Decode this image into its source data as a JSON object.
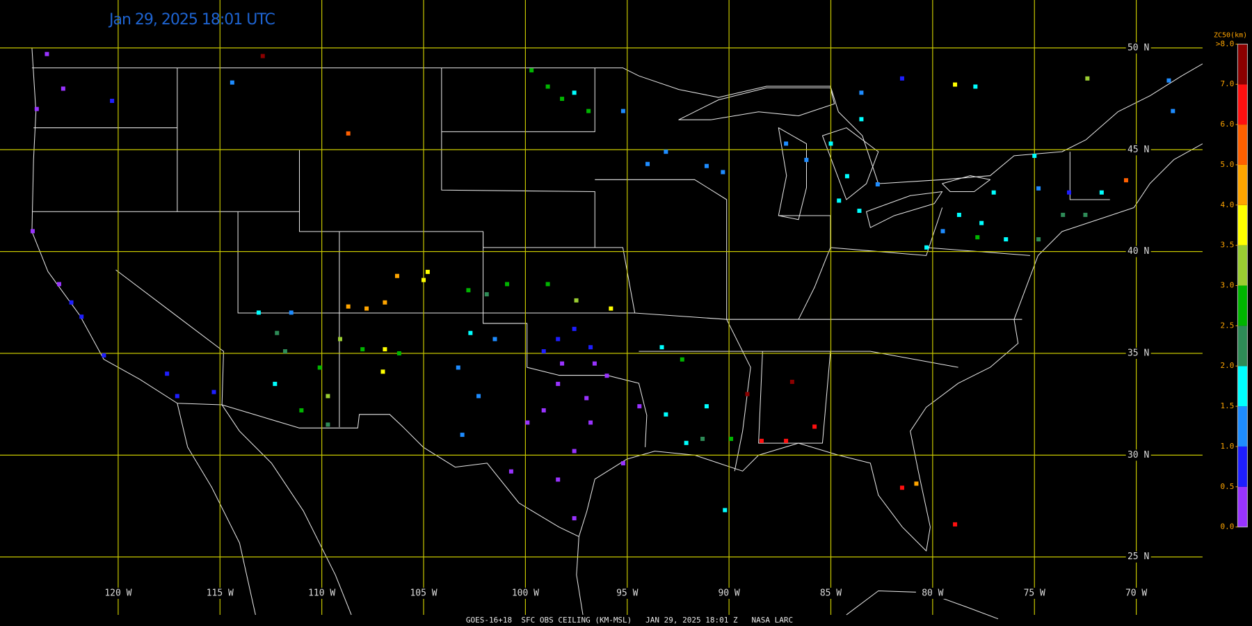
{
  "header": {
    "title": "Jan 29, 2025 18:01 UTC"
  },
  "map": {
    "grid_color": "#c8c800",
    "lat_ticks": [
      {
        "value": 50,
        "label": "50 N"
      },
      {
        "value": 45,
        "label": "45 N"
      },
      {
        "value": 40,
        "label": "40 N"
      },
      {
        "value": 35,
        "label": "35 N"
      },
      {
        "value": 30,
        "label": "30 N"
      },
      {
        "value": 25,
        "label": "25 N"
      }
    ],
    "lon_ticks": [
      {
        "value": -120,
        "label": "120 W"
      },
      {
        "value": -115,
        "label": "115 W"
      },
      {
        "value": -110,
        "label": "110 W"
      },
      {
        "value": -105,
        "label": "105 W"
      },
      {
        "value": -100,
        "label": "100 W"
      },
      {
        "value": -95,
        "label": "95 W"
      },
      {
        "value": -90,
        "label": "90 W"
      },
      {
        "value": -85,
        "label": "85 W"
      },
      {
        "value": -80,
        "label": "80 W"
      },
      {
        "value": -75,
        "label": "75 W"
      },
      {
        "value": -70,
        "label": "70 W"
      }
    ],
    "stations": [
      {
        "lon": -108.7,
        "lat": 45.8,
        "value": 5.8
      },
      {
        "lon": -112.9,
        "lat": 49.6,
        "value": 7.5
      },
      {
        "lon": -120.3,
        "lat": 47.4,
        "value": 0.8
      },
      {
        "lon": -114.4,
        "lat": 48.3,
        "value": 1.2
      },
      {
        "lon": -123.5,
        "lat": 49.7,
        "value": 0.3
      },
      {
        "lon": -124.0,
        "lat": 47.0,
        "value": 0.3
      },
      {
        "lon": -122.7,
        "lat": 48.0,
        "value": 0.3
      },
      {
        "lon": -124.2,
        "lat": 41.0,
        "value": 0.3
      },
      {
        "lon": -122.9,
        "lat": 38.4,
        "value": 0.3
      },
      {
        "lon": -122.3,
        "lat": 37.5,
        "value": 0.7
      },
      {
        "lon": -121.8,
        "lat": 36.8,
        "value": 0.7
      },
      {
        "lon": -120.7,
        "lat": 34.9,
        "value": 0.7
      },
      {
        "lon": -117.6,
        "lat": 34.0,
        "value": 0.8
      },
      {
        "lon": -115.3,
        "lat": 33.1,
        "value": 0.7
      },
      {
        "lon": -117.1,
        "lat": 32.9,
        "value": 0.8
      },
      {
        "lon": -112.3,
        "lat": 33.5,
        "value": 1.7
      },
      {
        "lon": -111.8,
        "lat": 35.1,
        "value": 2.3
      },
      {
        "lon": -112.2,
        "lat": 36.0,
        "value": 2.2
      },
      {
        "lon": -111.0,
        "lat": 32.2,
        "value": 2.8
      },
      {
        "lon": -109.7,
        "lat": 31.5,
        "value": 2.3
      },
      {
        "lon": -113.1,
        "lat": 37.0,
        "value": 1.7
      },
      {
        "lon": -111.5,
        "lat": 37.0,
        "value": 1.2
      },
      {
        "lon": -104.8,
        "lat": 39.0,
        "value": 3.7
      },
      {
        "lon": -105.0,
        "lat": 38.6,
        "value": 3.8
      },
      {
        "lon": -106.3,
        "lat": 38.8,
        "value": 4.3
      },
      {
        "lon": -108.7,
        "lat": 37.3,
        "value": 4.2
      },
      {
        "lon": -106.9,
        "lat": 37.5,
        "value": 4.4
      },
      {
        "lon": -107.8,
        "lat": 37.2,
        "value": 4.6
      },
      {
        "lon": -109.1,
        "lat": 35.7,
        "value": 3.1
      },
      {
        "lon": -106.9,
        "lat": 35.2,
        "value": 3.7
      },
      {
        "lon": -107.0,
        "lat": 34.1,
        "value": 3.8
      },
      {
        "lon": -109.7,
        "lat": 32.9,
        "value": 3.1
      },
      {
        "lon": -110.1,
        "lat": 34.3,
        "value": 2.8
      },
      {
        "lon": -108.0,
        "lat": 35.2,
        "value": 2.8
      },
      {
        "lon": -106.2,
        "lat": 35.0,
        "value": 2.8
      },
      {
        "lon": -97.5,
        "lat": 37.6,
        "value": 3.2
      },
      {
        "lon": -95.8,
        "lat": 37.2,
        "value": 3.7
      },
      {
        "lon": -98.9,
        "lat": 38.4,
        "value": 2.8
      },
      {
        "lon": -100.9,
        "lat": 38.4,
        "value": 2.8
      },
      {
        "lon": -101.9,
        "lat": 37.9,
        "value": 2.3
      },
      {
        "lon": -102.8,
        "lat": 38.1,
        "value": 2.8
      },
      {
        "lon": -97.0,
        "lat": 32.8,
        "value": 0.3
      },
      {
        "lon": -98.4,
        "lat": 33.5,
        "value": 0.3
      },
      {
        "lon": -96.0,
        "lat": 33.9,
        "value": 0.3
      },
      {
        "lon": -96.8,
        "lat": 31.6,
        "value": 0.3
      },
      {
        "lon": -95.2,
        "lat": 29.6,
        "value": 0.3
      },
      {
        "lon": -98.4,
        "lat": 28.8,
        "value": 0.3
      },
      {
        "lon": -97.6,
        "lat": 26.9,
        "value": 0.3
      },
      {
        "lon": -99.9,
        "lat": 31.6,
        "value": 0.3
      },
      {
        "lon": -97.6,
        "lat": 30.2,
        "value": 0.4
      },
      {
        "lon": -99.1,
        "lat": 32.2,
        "value": 0.4
      },
      {
        "lon": -98.2,
        "lat": 34.5,
        "value": 0.3
      },
      {
        "lon": -96.6,
        "lat": 34.5,
        "value": 0.3
      },
      {
        "lon": -94.4,
        "lat": 32.4,
        "value": 0.3
      },
      {
        "lon": -100.7,
        "lat": 29.2,
        "value": 0.3
      },
      {
        "lon": -98.4,
        "lat": 35.7,
        "value": 0.8
      },
      {
        "lon": -96.8,
        "lat": 35.3,
        "value": 0.8
      },
      {
        "lon": -99.1,
        "lat": 35.1,
        "value": 0.7
      },
      {
        "lon": -97.6,
        "lat": 36.2,
        "value": 0.8
      },
      {
        "lon": -101.5,
        "lat": 35.7,
        "value": 1.2
      },
      {
        "lon": -102.7,
        "lat": 36.0,
        "value": 1.7
      },
      {
        "lon": -102.3,
        "lat": 32.9,
        "value": 1.2
      },
      {
        "lon": -103.3,
        "lat": 34.3,
        "value": 1.2
      },
      {
        "lon": -103.1,
        "lat": 31.0,
        "value": 1.2
      },
      {
        "lon": -93.1,
        "lat": 32.0,
        "value": 1.7
      },
      {
        "lon": -92.1,
        "lat": 30.6,
        "value": 1.7
      },
      {
        "lon": -91.1,
        "lat": 32.4,
        "value": 1.7
      },
      {
        "lon": -91.3,
        "lat": 30.8,
        "value": 2.3
      },
      {
        "lon": -89.9,
        "lat": 30.8,
        "value": 2.8
      },
      {
        "lon": -93.3,
        "lat": 35.3,
        "value": 1.7
      },
      {
        "lon": -92.3,
        "lat": 34.7,
        "value": 2.7
      },
      {
        "lon": -88.4,
        "lat": 30.7,
        "value": 6.8
      },
      {
        "lon": -85.8,
        "lat": 31.4,
        "value": 6.8
      },
      {
        "lon": -87.2,
        "lat": 30.7,
        "value": 6.8
      },
      {
        "lon": -89.1,
        "lat": 33.0,
        "value": 7.5
      },
      {
        "lon": -86.9,
        "lat": 33.6,
        "value": 7.5
      },
      {
        "lon": -81.5,
        "lat": 28.4,
        "value": 6.8
      },
      {
        "lon": -80.8,
        "lat": 28.6,
        "value": 4.7
      },
      {
        "lon": -78.9,
        "lat": 26.6,
        "value": 6.8
      },
      {
        "lon": -90.2,
        "lat": 27.3,
        "value": 1.7
      },
      {
        "lon": -84.6,
        "lat": 42.5,
        "value": 1.7
      },
      {
        "lon": -84.2,
        "lat": 43.7,
        "value": 1.7
      },
      {
        "lon": -83.6,
        "lat": 42.0,
        "value": 1.7
      },
      {
        "lon": -85.0,
        "lat": 45.3,
        "value": 1.7
      },
      {
        "lon": -86.2,
        "lat": 44.5,
        "value": 1.2
      },
      {
        "lon": -87.2,
        "lat": 45.3,
        "value": 1.2
      },
      {
        "lon": -83.5,
        "lat": 47.8,
        "value": 1.2
      },
      {
        "lon": -81.5,
        "lat": 48.5,
        "value": 0.8
      },
      {
        "lon": -78.9,
        "lat": 48.2,
        "value": 3.7
      },
      {
        "lon": -77.9,
        "lat": 48.1,
        "value": 1.7
      },
      {
        "lon": -72.4,
        "lat": 48.5,
        "value": 3.1
      },
      {
        "lon": -78.7,
        "lat": 41.8,
        "value": 1.7
      },
      {
        "lon": -77.6,
        "lat": 41.4,
        "value": 1.7
      },
      {
        "lon": -79.5,
        "lat": 41.0,
        "value": 1.2
      },
      {
        "lon": -77.8,
        "lat": 40.7,
        "value": 2.8
      },
      {
        "lon": -80.3,
        "lat": 40.2,
        "value": 1.7
      },
      {
        "lon": -76.4,
        "lat": 40.6,
        "value": 1.7
      },
      {
        "lon": -74.8,
        "lat": 40.6,
        "value": 2.3
      },
      {
        "lon": -73.6,
        "lat": 41.8,
        "value": 2.3
      },
      {
        "lon": -72.5,
        "lat": 41.8,
        "value": 2.3
      },
      {
        "lon": -71.7,
        "lat": 42.9,
        "value": 1.7
      },
      {
        "lon": -73.3,
        "lat": 42.9,
        "value": 0.8
      },
      {
        "lon": -75.0,
        "lat": 44.7,
        "value": 1.7
      },
      {
        "lon": -74.8,
        "lat": 43.1,
        "value": 1.2
      },
      {
        "lon": -70.5,
        "lat": 43.5,
        "value": 5.8
      },
      {
        "lon": -68.2,
        "lat": 46.9,
        "value": 1.2
      },
      {
        "lon": -68.4,
        "lat": 48.4,
        "value": 1.2
      },
      {
        "lon": -93.1,
        "lat": 44.9,
        "value": 1.2
      },
      {
        "lon": -94.0,
        "lat": 44.3,
        "value": 1.2
      },
      {
        "lon": -91.1,
        "lat": 44.2,
        "value": 1.2
      },
      {
        "lon": -90.3,
        "lat": 43.9,
        "value": 1.2
      },
      {
        "lon": -95.2,
        "lat": 46.9,
        "value": 1.2
      },
      {
        "lon": -96.9,
        "lat": 46.9,
        "value": 2.8
      },
      {
        "lon": -98.2,
        "lat": 47.5,
        "value": 2.8
      },
      {
        "lon": -97.6,
        "lat": 47.8,
        "value": 1.7
      },
      {
        "lon": -98.9,
        "lat": 48.1,
        "value": 2.8
      },
      {
        "lon": -99.7,
        "lat": 48.9,
        "value": 2.8
      },
      {
        "lon": -83.5,
        "lat": 46.5,
        "value": 1.7
      },
      {
        "lon": -82.7,
        "lat": 43.3,
        "value": 1.2
      },
      {
        "lon": -77.0,
        "lat": 42.9,
        "value": 1.7
      }
    ]
  },
  "colorbar": {
    "title": "ZC50(km)",
    "ticks": [
      {
        "value": 0,
        "label": "0.0"
      },
      {
        "value": 0.5,
        "label": "0.5"
      },
      {
        "value": 1,
        "label": "1.0"
      },
      {
        "value": 1.5,
        "label": "1.5"
      },
      {
        "value": 2,
        "label": "2.0"
      },
      {
        "value": 2.5,
        "label": "2.5"
      },
      {
        "value": 3,
        "label": "3.0"
      },
      {
        "value": 3.5,
        "label": "3.5"
      },
      {
        "value": 4,
        "label": "4.0"
      },
      {
        "value": 5,
        "label": "5.0"
      },
      {
        "value": 6,
        "label": "6.0"
      },
      {
        "value": 7,
        "label": "7.0"
      },
      {
        "value": 8,
        "label": ">8.0"
      }
    ],
    "colors": [
      "#9933ff",
      "#1e1eff",
      "#1e8cff",
      "#00ffff",
      "#2e8b57",
      "#00b400",
      "#9acd32",
      "#ffff00",
      "#ffa500",
      "#ff6000",
      "#ff1010",
      "#8b0000"
    ]
  },
  "footer": "GOES-16+18  SFC OBS CEILING (KM-MSL)   JAN 29, 2025 18:01 Z   NASA LARC"
}
